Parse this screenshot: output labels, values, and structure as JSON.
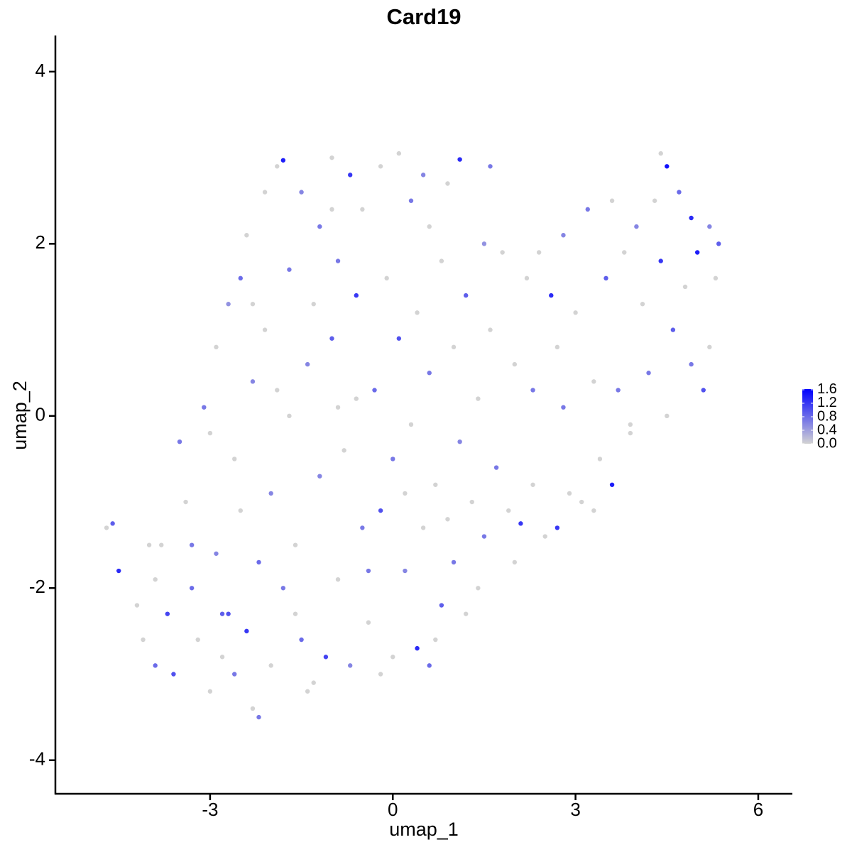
{
  "chart_data": {
    "type": "scatter",
    "title": "Card19",
    "x_label": "umap_1",
    "y_label": "umap_2",
    "x": [
      -4.7,
      -4.6,
      -4.5,
      -4.2,
      -4.1,
      -3.9,
      -3.8,
      -3.7,
      -3.6,
      -3.5,
      -3.4,
      -3.3,
      -3.2,
      -3.1,
      -3.0,
      -2.9,
      -2.9,
      -2.8,
      -2.7,
      -2.6,
      -2.6,
      -2.5,
      -2.5,
      -2.4,
      -2.4,
      -2.3,
      -2.3,
      -2.2,
      -2.2,
      -2.1,
      -2.1,
      -2.0,
      -2.0,
      -1.9,
      -1.8,
      -1.8,
      -1.7,
      -1.7,
      -1.6,
      -1.5,
      -1.5,
      -1.4,
      -1.3,
      -1.3,
      -1.2,
      -1.2,
      -1.1,
      -1.0,
      -1.0,
      -0.9,
      -0.9,
      -0.8,
      -0.7,
      -0.7,
      -0.6,
      -0.6,
      -0.5,
      -0.5,
      -0.4,
      -0.3,
      -0.2,
      -0.2,
      -0.1,
      0.0,
      0.0,
      0.1,
      0.1,
      0.2,
      0.3,
      0.3,
      0.4,
      0.4,
      0.5,
      0.5,
      0.6,
      0.6,
      0.7,
      0.8,
      0.8,
      0.9,
      1.0,
      1.0,
      1.1,
      1.1,
      1.2,
      1.2,
      1.3,
      1.4,
      1.5,
      1.6,
      1.6,
      1.7,
      1.8,
      1.9,
      2.0,
      2.0,
      2.1,
      2.2,
      2.3,
      2.3,
      2.4,
      2.5,
      2.6,
      2.7,
      2.7,
      2.8,
      2.9,
      3.0,
      3.1,
      3.2,
      3.3,
      3.4,
      3.5,
      3.6,
      3.6,
      3.7,
      3.8,
      3.9,
      4.0,
      4.1,
      4.2,
      4.3,
      4.4,
      4.5,
      4.5,
      4.6,
      4.7,
      4.8,
      4.9,
      4.9,
      5.0,
      5.1,
      5.2,
      5.3,
      5.35,
      5.2,
      4.4,
      3.9,
      -3.9,
      -4.0,
      -3.0,
      -2.7,
      -1.4,
      -0.2,
      0.7,
      1.4,
      -1.9,
      -0.9,
      0.2,
      -2.3,
      -1.0,
      0.6,
      1.5,
      2.8,
      3.3,
      -3.3,
      -2.8,
      -1.6,
      -0.4,
      0.9
    ],
    "y": [
      -1.3,
      -1.25,
      -1.8,
      -2.2,
      -2.6,
      -2.9,
      -1.5,
      -2.3,
      -3.0,
      -0.3,
      -1.0,
      -2.0,
      -2.6,
      0.1,
      -3.2,
      -1.6,
      0.8,
      -2.3,
      1.3,
      -0.5,
      -3.0,
      1.6,
      -1.1,
      2.1,
      -2.5,
      -3.4,
      0.4,
      -1.7,
      -3.5,
      1.0,
      2.6,
      -0.9,
      -2.9,
      2.9,
      2.97,
      -2.0,
      0.0,
      1.7,
      -1.5,
      2.6,
      -2.6,
      0.6,
      -3.1,
      1.3,
      2.2,
      -0.7,
      -2.8,
      3.0,
      0.9,
      -1.9,
      1.8,
      -0.4,
      2.8,
      -2.9,
      1.4,
      0.2,
      2.4,
      -1.3,
      -2.4,
      0.3,
      2.9,
      -1.1,
      1.6,
      -0.5,
      -2.8,
      3.05,
      0.9,
      -1.8,
      2.5,
      -0.1,
      -2.7,
      1.2,
      -1.3,
      2.8,
      0.5,
      -2.9,
      -0.8,
      1.8,
      -2.2,
      2.7,
      -1.7,
      0.8,
      2.98,
      -0.3,
      -2.3,
      1.4,
      -1.0,
      0.2,
      -1.4,
      1.0,
      2.9,
      -0.6,
      1.9,
      -1.1,
      0.6,
      -1.7,
      -1.25,
      1.6,
      0.3,
      -0.8,
      1.9,
      -1.4,
      1.4,
      -1.3,
      0.8,
      2.1,
      -0.9,
      1.2,
      -1.0,
      2.4,
      0.4,
      -0.5,
      1.6,
      -0.8,
      2.5,
      0.3,
      1.9,
      -0.2,
      2.2,
      1.3,
      0.5,
      2.5,
      1.8,
      2.9,
      0.0,
      1.0,
      2.6,
      1.5,
      2.3,
      0.6,
      1.9,
      0.3,
      2.2,
      1.6,
      2.0,
      0.8,
      3.05,
      -0.1,
      -1.9,
      -1.5,
      -0.2,
      -2.3,
      -3.2,
      -3.0,
      -2.6,
      -2.0,
      0.3,
      0.1,
      -0.9,
      1.3,
      2.4,
      2.2,
      2.0,
      0.1,
      -1.1,
      -1.5,
      -2.8,
      -2.3,
      -1.8,
      -1.2
    ],
    "values": [
      0,
      0.9,
      1.3,
      0,
      0,
      0.8,
      0,
      1.1,
      1.0,
      0.7,
      0,
      0.8,
      0,
      0.7,
      0,
      0.6,
      0,
      0.9,
      0.5,
      0,
      0.7,
      0.8,
      0,
      0,
      1.2,
      0,
      0.6,
      0.8,
      0.7,
      0,
      0,
      0.6,
      0,
      0,
      1.4,
      0.7,
      0,
      0.7,
      0,
      0.6,
      0.8,
      0.6,
      0,
      0,
      0.7,
      0.6,
      1.1,
      0,
      0.9,
      0,
      0.7,
      0,
      1.2,
      0.6,
      1.2,
      0,
      0,
      0.7,
      0,
      0.8,
      0,
      1.0,
      0,
      0.7,
      0,
      0,
      1.0,
      0.6,
      0.7,
      0,
      1.3,
      0,
      0,
      0.6,
      0.7,
      0.8,
      0,
      0,
      0.9,
      0,
      0.7,
      0,
      1.3,
      0.6,
      0,
      0.9,
      0,
      0,
      0.7,
      0,
      0.7,
      0.7,
      0,
      0,
      0,
      0,
      1.2,
      0,
      0.7,
      0,
      0,
      0,
      1.3,
      1.2,
      0,
      0.6,
      0,
      0,
      0,
      0.7,
      0,
      0,
      0.9,
      1.4,
      0,
      0.7,
      0,
      0,
      0.6,
      0,
      0.7,
      0,
      1.2,
      1.5,
      0,
      0.9,
      0.8,
      0,
      1.3,
      0.7,
      1.4,
      1.0,
      0.6,
      0,
      0.9,
      0,
      0,
      0,
      0,
      0,
      0,
      1.0,
      0,
      0,
      0,
      0,
      0,
      0,
      0,
      0,
      0,
      0,
      0.5,
      0.7,
      0,
      0.7,
      0,
      0,
      0.7,
      0
    ],
    "low_color": "#d3d3d3",
    "high_color": "#0000ff",
    "xlim": [
      -5.54,
      6.56
    ],
    "ylim": [
      -4.39,
      4.42
    ],
    "xticks": [
      -3,
      0,
      3,
      6
    ],
    "yticks": [
      -4,
      -2,
      0,
      2,
      4
    ],
    "colorlim": [
      0,
      1.62
    ],
    "colorticks": [
      {
        "value": 0,
        "label": "0.0"
      },
      {
        "value": 0.4,
        "label": "0.4"
      },
      {
        "value": 0.8,
        "label": "0.8"
      },
      {
        "value": 1.2,
        "label": "1.2"
      },
      {
        "value": 1.6,
        "label": "1.6"
      }
    ],
    "grid": false
  }
}
